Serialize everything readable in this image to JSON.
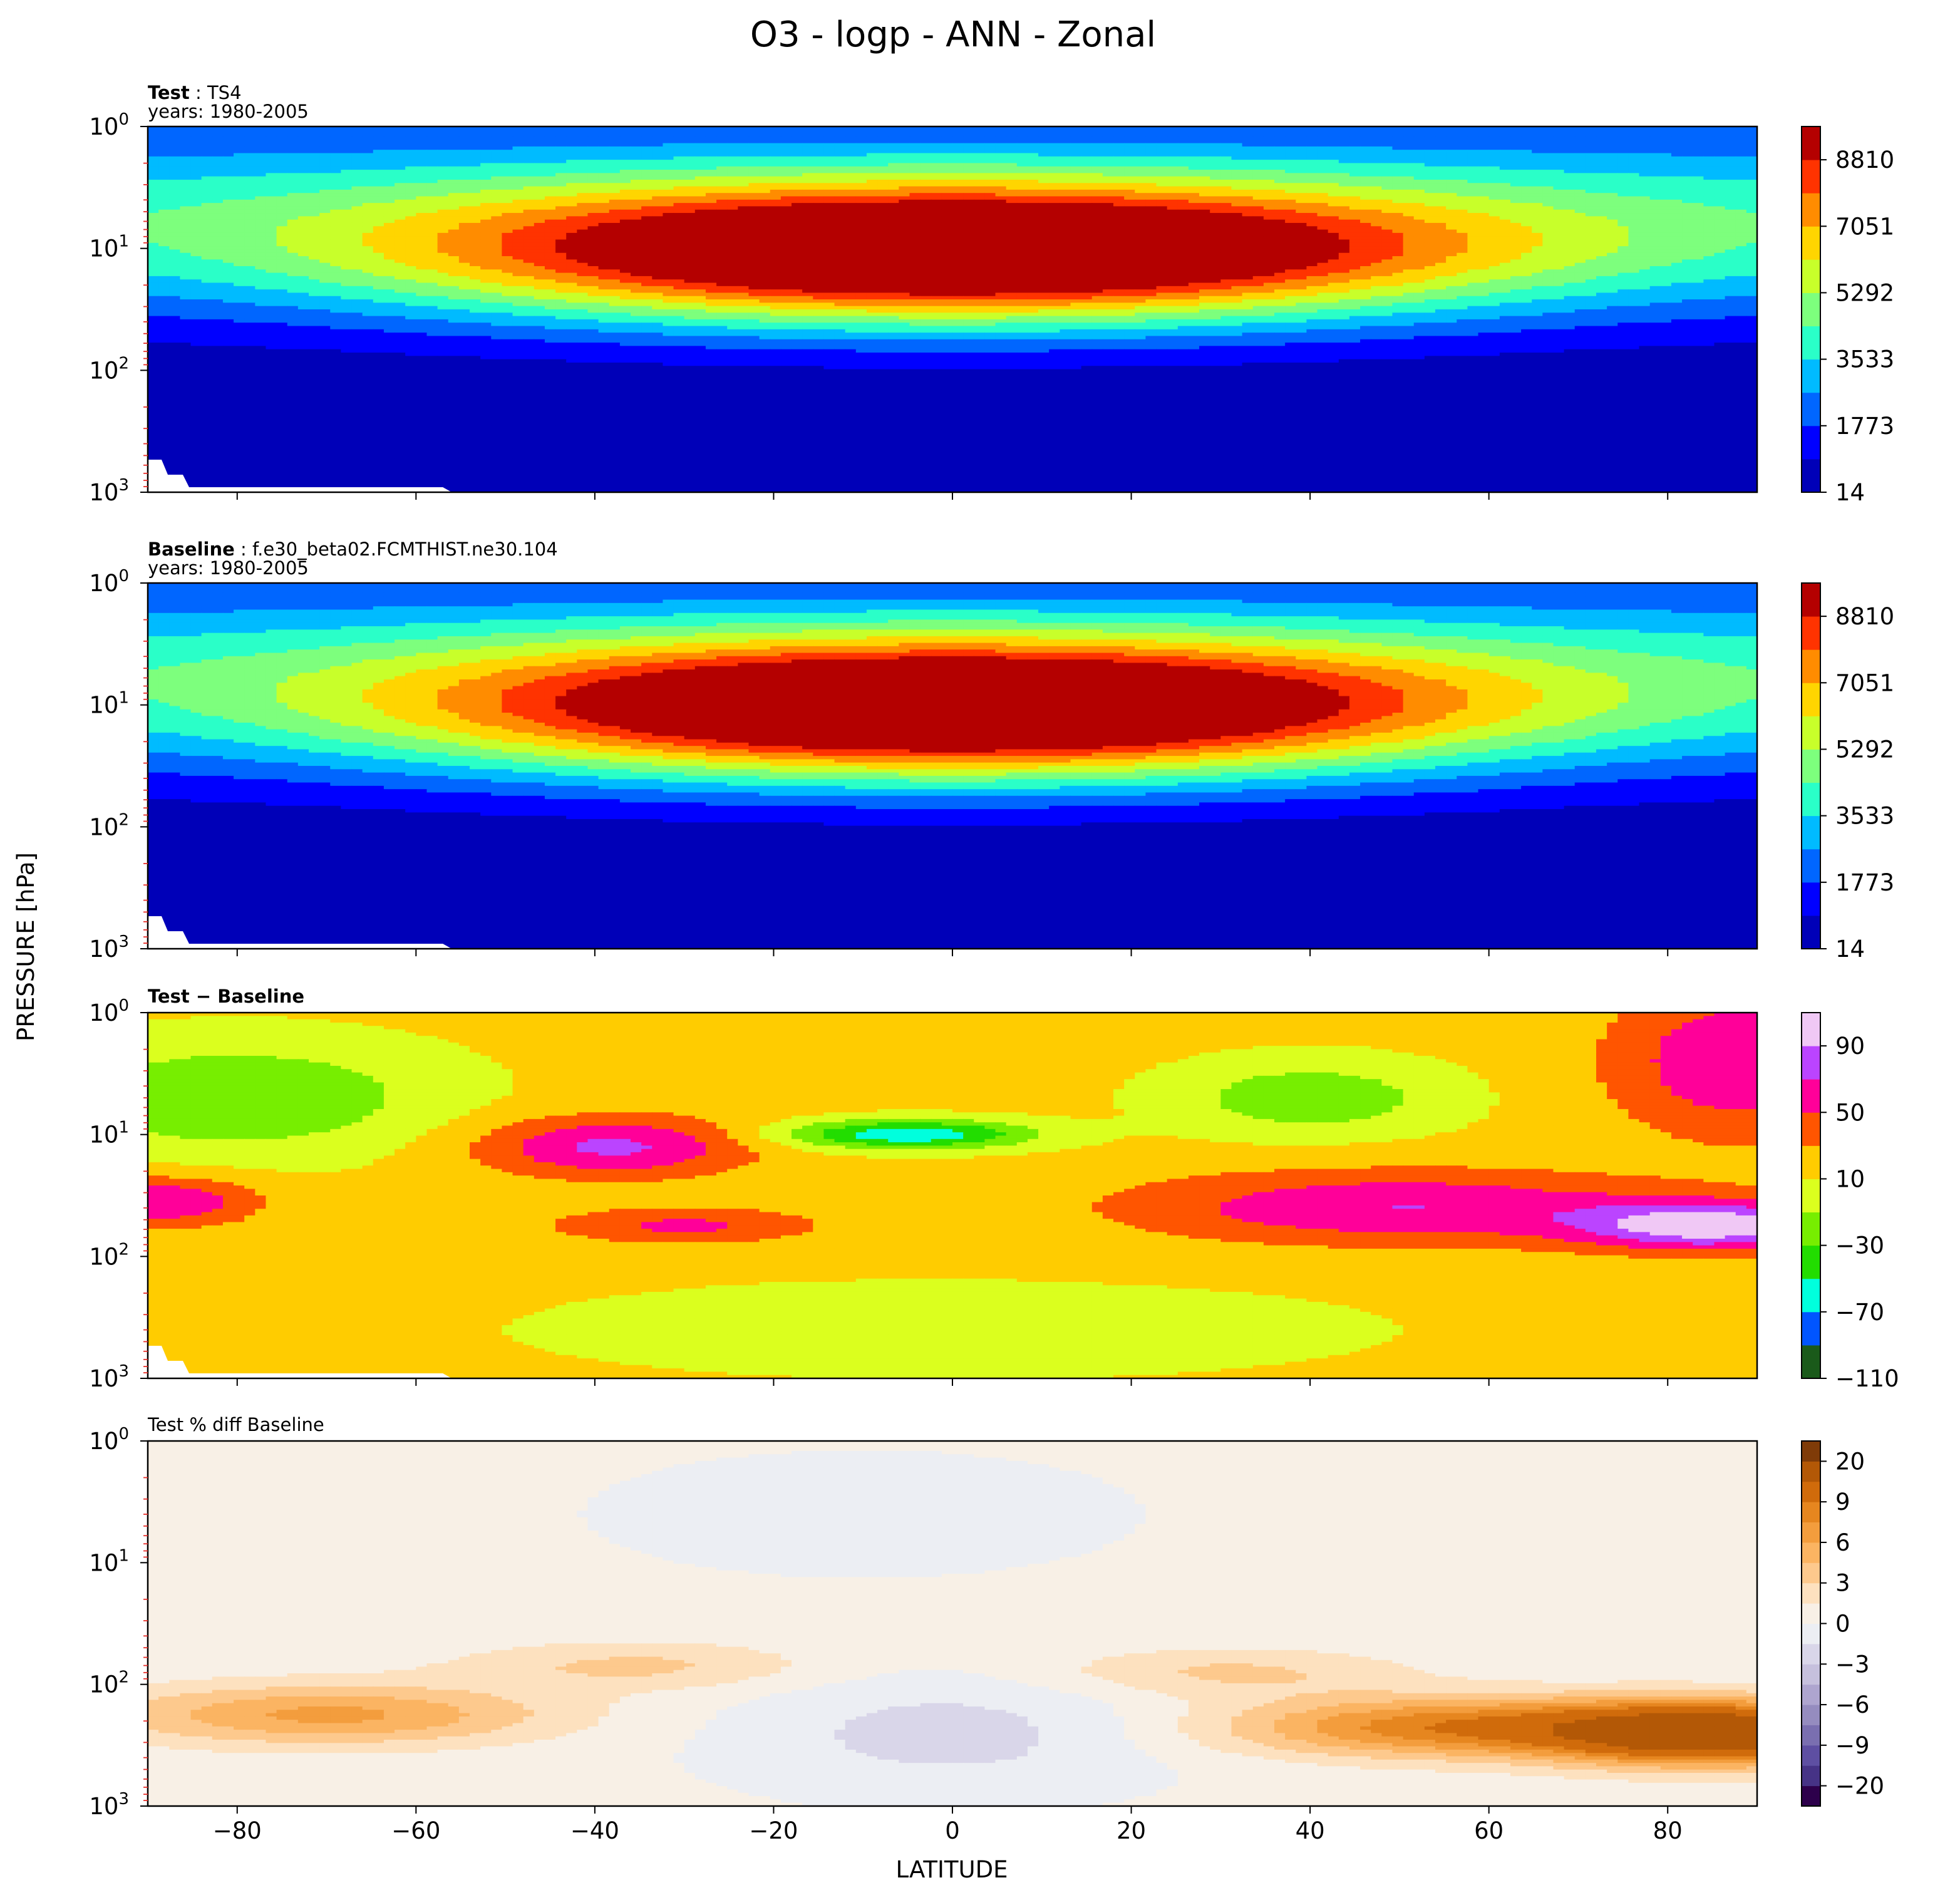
{
  "figure": {
    "title": "O3 - logp - ANN - Zonal",
    "xlabel": "LATITUDE",
    "ylabel": "PRESSURE [hPa]"
  },
  "panels": [
    {
      "title_bold": "Test",
      "title_rest": " : TS4",
      "subtitle": "years: 1980-2005"
    },
    {
      "title_bold": "Baseline",
      "title_rest": " : f.e30_beta02.FCMTHIST.ne30.104",
      "subtitle": "years: 1980-2005"
    },
    {
      "title_bold": "Test − Baseline",
      "title_rest": "",
      "subtitle": ""
    },
    {
      "title_bold": "",
      "title_rest": "Test % diff Baseline",
      "subtitle": ""
    }
  ],
  "chart_data": [
    {
      "type": "heatmap",
      "title": "Test : TS4",
      "subtitle": "years: 1980-2005",
      "x_axis": {
        "label": "LATITUDE",
        "range": [
          -90,
          90
        ],
        "ticks": [
          -80,
          -60,
          -40,
          -20,
          0,
          20,
          40,
          60,
          80
        ]
      },
      "y_axis": {
        "label": "PRESSURE [hPa]",
        "scale": "log",
        "inverted": true,
        "range": [
          1000,
          1
        ],
        "ticks": [
          "10^0",
          "10^1",
          "10^2",
          "10^3"
        ]
      },
      "colorbar": {
        "ticks": [
          "14",
          "1773",
          "3533",
          "5292",
          "7051",
          "8810"
        ],
        "levels": [
          14,
          894,
          1773,
          2653,
          3533,
          4412,
          5292,
          6172,
          7051,
          7931,
          8810,
          9690
        ],
        "colors": [
          "#0000b8",
          "#0000ff",
          "#0066ff",
          "#00bbff",
          "#2affc8",
          "#7dff7d",
          "#c8ff2a",
          "#ffd500",
          "#ff8c00",
          "#ff3300",
          "#b40000"
        ]
      },
      "zonal_structure": {
        "peak_value_approx": 9690,
        "peak_lat": 0,
        "peak_pressure_hPa": 10,
        "surface_value_approx": 14
      }
    },
    {
      "type": "heatmap",
      "title": "Baseline : f.e30_beta02.FCMTHIST.ne30.104",
      "subtitle": "years: 1980-2005",
      "x_axis": {
        "label": "LATITUDE",
        "range": [
          -90,
          90
        ],
        "ticks": [
          -80,
          -60,
          -40,
          -20,
          0,
          20,
          40,
          60,
          80
        ]
      },
      "y_axis": {
        "label": "PRESSURE [hPa]",
        "scale": "log",
        "inverted": true,
        "range": [
          1000,
          1
        ],
        "ticks": [
          "10^0",
          "10^1",
          "10^2",
          "10^3"
        ]
      },
      "colorbar": {
        "ticks": [
          "14",
          "1773",
          "3533",
          "5292",
          "7051",
          "8810"
        ],
        "levels": [
          14,
          894,
          1773,
          2653,
          3533,
          4412,
          5292,
          6172,
          7051,
          7931,
          8810,
          9690
        ],
        "colors": [
          "#0000b8",
          "#0000ff",
          "#0066ff",
          "#00bbff",
          "#2affc8",
          "#7dff7d",
          "#c8ff2a",
          "#ffd500",
          "#ff8c00",
          "#ff3300",
          "#b40000"
        ]
      },
      "zonal_structure": {
        "peak_value_approx": 9690,
        "peak_lat": 0,
        "peak_pressure_hPa": 10,
        "surface_value_approx": 14
      }
    },
    {
      "type": "heatmap",
      "title": "Test − Baseline",
      "x_axis": {
        "label": "LATITUDE",
        "range": [
          -90,
          90
        ],
        "ticks": [
          -80,
          -60,
          -40,
          -20,
          0,
          20,
          40,
          60,
          80
        ]
      },
      "y_axis": {
        "label": "PRESSURE [hPa]",
        "scale": "log",
        "inverted": true,
        "range": [
          1000,
          1
        ],
        "ticks": [
          "10^0",
          "10^1",
          "10^2",
          "10^3"
        ]
      },
      "colorbar": {
        "ticks": [
          "−110",
          "−70",
          "−30",
          "10",
          "50",
          "90"
        ],
        "levels": [
          -110,
          -90,
          -70,
          -50,
          -30,
          -10,
          10,
          30,
          50,
          70,
          90,
          110
        ],
        "colors": [
          "#1a5a1a",
          "#0055ff",
          "#00ffdd",
          "#22dd00",
          "#77ee00",
          "#dbff1e",
          "#ffcc00",
          "#ff5500",
          "#ff0099",
          "#bb44ff",
          "#f0c8f5"
        ]
      },
      "features": [
        {
          "region": "SH upper (~-90 to -60, 1-10 hPa)",
          "sign": "negative",
          "value_approx": -15
        },
        {
          "region": "equator 10 hPa",
          "sign": "negative",
          "value_approx": -60
        },
        {
          "region": "-40 lat, 10 hPa",
          "sign": "positive",
          "value_approx": 60
        },
        {
          "region": "NH high lat 40-60 hPa",
          "sign": "positive",
          "value_approx": 100
        },
        {
          "region": "NH high lat 1-5 hPa",
          "sign": "positive",
          "value_approx": 60
        }
      ]
    },
    {
      "type": "heatmap",
      "title": "Test % diff Baseline",
      "x_axis": {
        "label": "LATITUDE",
        "range": [
          -90,
          90
        ],
        "ticks": [
          -80,
          -60,
          -40,
          -20,
          0,
          20,
          40,
          60,
          80
        ]
      },
      "y_axis": {
        "label": "PRESSURE [hPa]",
        "scale": "log",
        "inverted": true,
        "range": [
          1000,
          1
        ],
        "ticks": [
          "10^0",
          "10^1",
          "10^2",
          "10^3"
        ]
      },
      "colorbar": {
        "ticks": [
          "−20",
          "−9",
          "−6",
          "−3",
          "0",
          "3",
          "6",
          "9",
          "20"
        ],
        "levels": [
          -30,
          -20,
          -12,
          -9,
          -7.5,
          -6,
          -4.5,
          -3,
          -1.5,
          0,
          1.5,
          3,
          4.5,
          6,
          7.5,
          9,
          12,
          20,
          30
        ],
        "colors": [
          "#2d004b",
          "#463386",
          "#5e4fa2",
          "#7a6fb0",
          "#958cbf",
          "#aea5cf",
          "#c6c0dd",
          "#d9d6e9",
          "#eceef3",
          "#f8f0e6",
          "#fde1bf",
          "#fdc98d",
          "#fbb462",
          "#f39d3d",
          "#e6861f",
          "#d06b0b",
          "#b35806",
          "#7f3b08"
        ]
      },
      "features": [
        {
          "region": "NH polar ~200 hPa",
          "sign": "positive",
          "value_approx": 15
        },
        {
          "region": "SH 60-80 lat ~150 hPa",
          "sign": "positive",
          "value_approx": 6
        },
        {
          "region": "tropics 100-1000 hPa",
          "sign": "negative",
          "value_approx": -2
        }
      ]
    }
  ]
}
